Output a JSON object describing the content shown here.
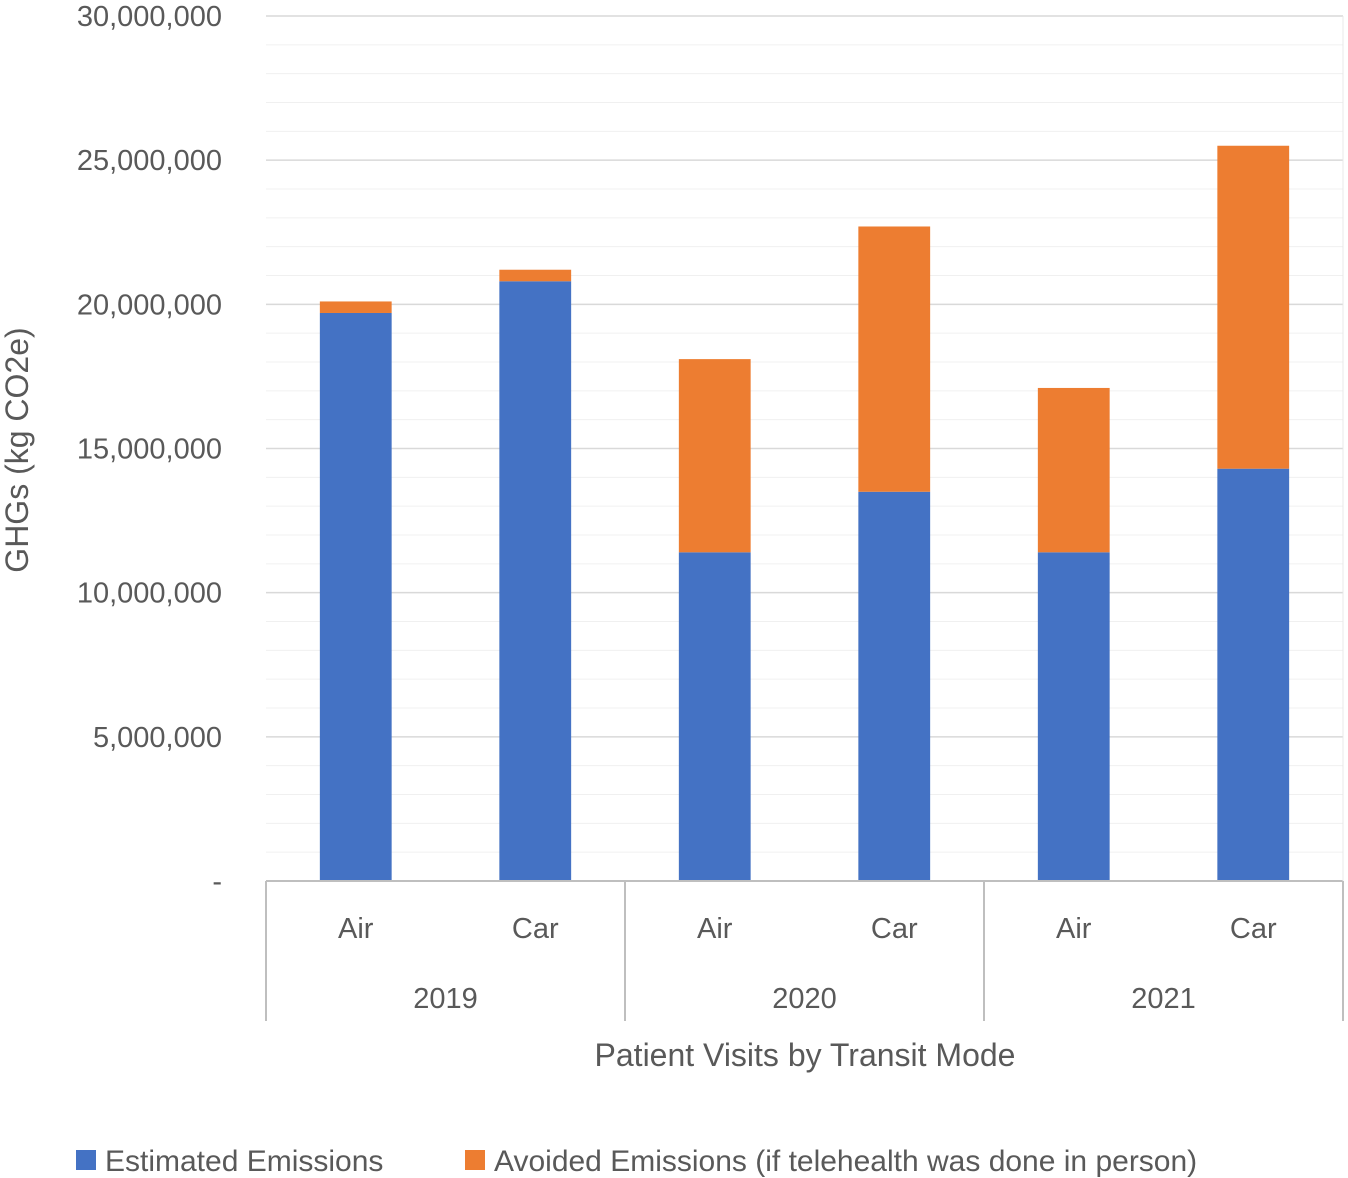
{
  "chart_data": {
    "type": "bar",
    "stacked": true,
    "title": "",
    "xlabel": "Patient Visits by Transit Mode",
    "ylabel": "GHGs (kg CO2e)",
    "ylim": [
      0,
      30000000
    ],
    "y_ticks": [
      {
        "value": 0,
        "label": "-"
      },
      {
        "value": 5000000,
        "label": "5,000,000"
      },
      {
        "value": 10000000,
        "label": "10,000,000"
      },
      {
        "value": 15000000,
        "label": "15,000,000"
      },
      {
        "value": 20000000,
        "label": "20,000,000"
      },
      {
        "value": 25000000,
        "label": "25,000,000"
      },
      {
        "value": 30000000,
        "label": "30,000,000"
      }
    ],
    "grid": true,
    "legend_position": "bottom",
    "groups": [
      {
        "label": "2019",
        "categories": [
          "Air",
          "Car"
        ]
      },
      {
        "label": "2020",
        "categories": [
          "Air",
          "Car"
        ]
      },
      {
        "label": "2021",
        "categories": [
          "Air",
          "Car"
        ]
      }
    ],
    "series": [
      {
        "name": "Estimated Emissions",
        "color": "#4472C4",
        "values": [
          19700000,
          20800000,
          11400000,
          13500000,
          11400000,
          14300000
        ]
      },
      {
        "name": "Avoided Emissions (if telehealth was done in person)",
        "color": "#ED7D31",
        "values": [
          400000,
          400000,
          6700000,
          9200000,
          5700000,
          11200000
        ]
      }
    ]
  }
}
